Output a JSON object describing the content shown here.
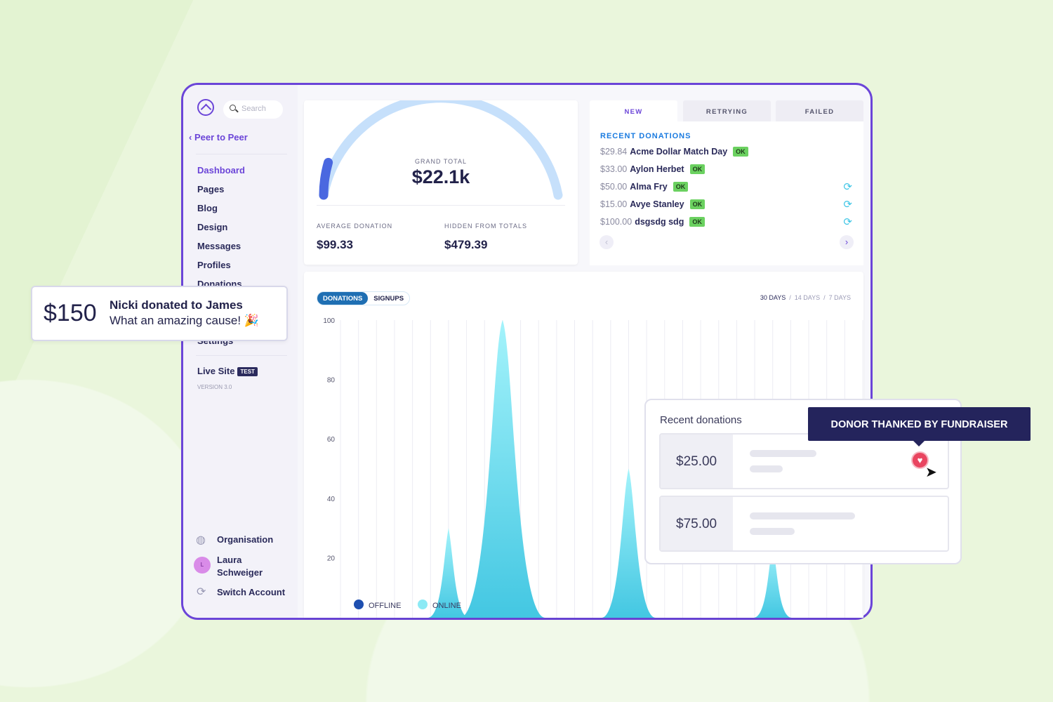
{
  "sidebar": {
    "search_placeholder": "Search",
    "back": "Peer to Peer",
    "items": [
      {
        "label": "Dashboard",
        "active": true
      },
      {
        "label": "Pages"
      },
      {
        "label": "Blog"
      },
      {
        "label": "Design"
      },
      {
        "label": "Messages"
      },
      {
        "label": "Profiles"
      },
      {
        "label": "Donations"
      },
      {
        "label": "Settings"
      }
    ],
    "live_site": "Live Site",
    "test_badge": "TEST",
    "version": "VERSION 3.0",
    "organisation": "Organisation",
    "user_name": "Laura Schweiger",
    "user_initial": "L",
    "switch_account": "Switch Account"
  },
  "totals": {
    "grand_total_label": "GRAND TOTAL",
    "grand_total": "$22.1k",
    "gauge_fill": 0.1,
    "average_label": "AVERAGE DONATION",
    "average": "$99.33",
    "hidden_label": "HIDDEN FROM TOTALS",
    "hidden": "$479.39"
  },
  "donations_panel": {
    "tabs": [
      "NEW",
      "RETRYING",
      "FAILED"
    ],
    "active_tab": "NEW",
    "heading": "RECENT DONATIONS",
    "rows": [
      {
        "amount": "$29.84",
        "name": "Acme Dollar Match Day",
        "status": "OK",
        "retry": false
      },
      {
        "amount": "$33.00",
        "name": "Aylon Herbet",
        "status": "OK",
        "retry": false
      },
      {
        "amount": "$50.00",
        "name": "Alma Fry",
        "status": "OK",
        "retry": true
      },
      {
        "amount": "$15.00",
        "name": "Avye Stanley",
        "status": "OK",
        "retry": true
      },
      {
        "amount": "$100.00",
        "name": "dsgsdg sdg",
        "status": "OK",
        "retry": true
      }
    ]
  },
  "chart_controls": {
    "toggle": [
      "DONATIONS",
      "SIGNUPS"
    ],
    "active": "DONATIONS",
    "ranges": [
      "30 DAYS",
      "14 DAYS",
      "7 DAYS"
    ],
    "active_range": "30 DAYS"
  },
  "chart_data": {
    "type": "area",
    "ylim": [
      0,
      100
    ],
    "yticks": [
      "100",
      "80",
      "60",
      "40",
      "20"
    ],
    "grid": "vertical",
    "legend": [
      "OFFLINE",
      "ONLINE"
    ],
    "legend_placement": "bottom-left",
    "series": [
      {
        "name": "ONLINE",
        "color": "#4fd0e8",
        "values": [
          0,
          0,
          0,
          0,
          0,
          0,
          30,
          0,
          0,
          100,
          0,
          0,
          0,
          0,
          0,
          0,
          50,
          0,
          0,
          0,
          0,
          0,
          0,
          0,
          25,
          0,
          0,
          0,
          0,
          0
        ]
      }
    ]
  },
  "notification": {
    "amount": "$150",
    "title": "Nicki donated to James",
    "message": "What an amazing cause! 🎉"
  },
  "recent_card": {
    "title": "Recent donations",
    "items": [
      "$25.00",
      "$75.00"
    ]
  },
  "tooltip": "DONOR THANKED BY FUNDRAISER",
  "colors": {
    "accent": "#6b45d8",
    "ok": "#6bd160",
    "chart": "#4fd0e8",
    "tooltip": "#24245c",
    "heart": "#e94560"
  }
}
